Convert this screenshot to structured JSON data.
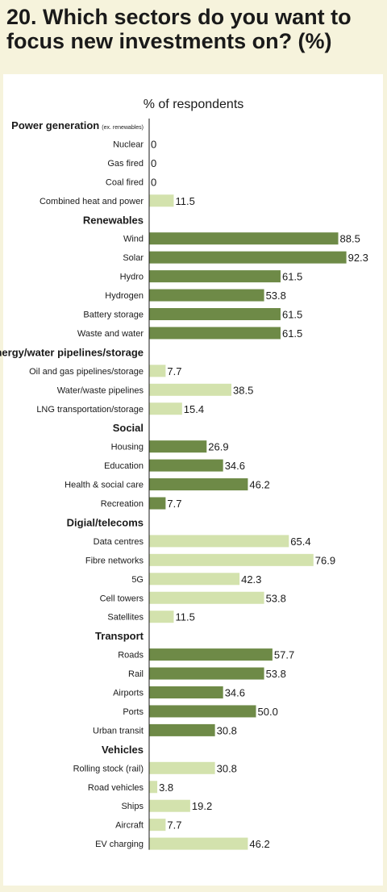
{
  "title": "20. Which sectors do you want to focus new investments on? (%)",
  "colors": {
    "dark": "#6e8a47",
    "light": "#d3e2ad",
    "background": "#f6f3dc",
    "panel": "#ffffff"
  },
  "chart_data": {
    "type": "bar",
    "orientation": "horizontal",
    "title": "20. Which sectors do you want to focus new investments on? (%)",
    "axis_title": "% of respondents",
    "xlim": [
      0,
      100
    ],
    "groups": [
      {
        "name": "Power generation",
        "qualifier": "(ex. renewables)",
        "color": "light",
        "items": [
          {
            "label": "Nuclear",
            "value": 0
          },
          {
            "label": "Gas fired",
            "value": 0
          },
          {
            "label": "Coal fired",
            "value": 0
          },
          {
            "label": "Combined heat and power",
            "value": 11.5
          }
        ]
      },
      {
        "name": "Renewables",
        "color": "dark",
        "items": [
          {
            "label": "Wind",
            "value": 88.5
          },
          {
            "label": "Solar",
            "value": 92.3
          },
          {
            "label": "Hydro",
            "value": 61.5
          },
          {
            "label": "Hydrogen",
            "value": 53.8
          },
          {
            "label": "Battery storage",
            "value": 61.5
          },
          {
            "label": "Waste and water",
            "value": 61.5
          }
        ]
      },
      {
        "name": "Energy/water pipelines/storage",
        "color": "light",
        "items": [
          {
            "label": "Oil and gas pipelines/storage",
            "value": 7.7
          },
          {
            "label": "Water/waste pipelines",
            "value": 38.5
          },
          {
            "label": "LNG transportation/storage",
            "value": 15.4
          }
        ]
      },
      {
        "name": "Social",
        "color": "dark",
        "items": [
          {
            "label": "Housing",
            "value": 26.9
          },
          {
            "label": "Education",
            "value": 34.6
          },
          {
            "label": "Health & social care",
            "value": 46.2
          },
          {
            "label": "Recreation",
            "value": 7.7
          }
        ]
      },
      {
        "name": "Digial/telecoms",
        "color": "light",
        "items": [
          {
            "label": "Data centres",
            "value": 65.4
          },
          {
            "label": "Fibre networks",
            "value": 76.9
          },
          {
            "label": "5G",
            "value": 42.3
          },
          {
            "label": "Cell towers",
            "value": 53.8
          },
          {
            "label": "Satellites",
            "value": 11.5
          }
        ]
      },
      {
        "name": "Transport",
        "color": "dark",
        "items": [
          {
            "label": "Roads",
            "value": 57.7
          },
          {
            "label": "Rail",
            "value": 53.8
          },
          {
            "label": "Airports",
            "value": 34.6
          },
          {
            "label": "Ports",
            "value": 50.0
          },
          {
            "label": "Urban transit",
            "value": 30.8
          }
        ]
      },
      {
        "name": "Vehicles",
        "color": "light",
        "items": [
          {
            "label": "Rolling stock (rail)",
            "value": 30.8
          },
          {
            "label": "Road vehicles",
            "value": 3.8
          },
          {
            "label": "Ships",
            "value": 19.2
          },
          {
            "label": "Aircraft",
            "value": 7.7
          },
          {
            "label": "EV charging",
            "value": 46.2
          }
        ]
      }
    ]
  }
}
